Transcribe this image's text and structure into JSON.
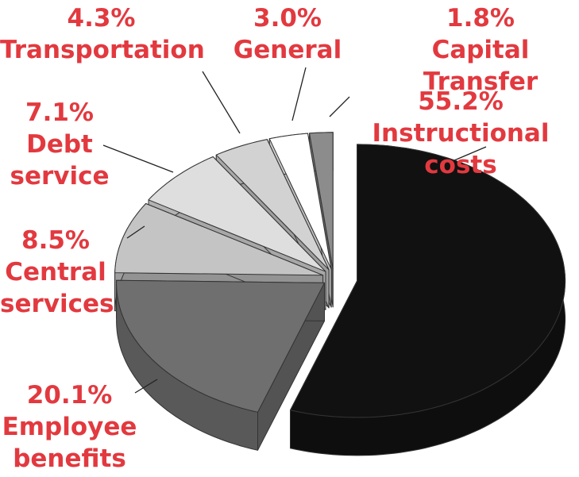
{
  "chart_data": {
    "type": "pie",
    "categories": [
      "Instructional costs",
      "Employee benefits",
      "Central services",
      "Debt service",
      "Transportation",
      "General",
      "Capital Transfer"
    ],
    "values": [
      55.2,
      20.1,
      8.5,
      7.1,
      4.3,
      3.0,
      1.8
    ],
    "value_labels": [
      "55.2%",
      "20.1%",
      "8.5%",
      "7.1%",
      "4.3%",
      "3.0%",
      "1.8%"
    ],
    "colors": [
      "#111111",
      "#6f6f6f",
      "#c4c4c4",
      "#dedede",
      "#d2d2d2",
      "#ffffff",
      "#8c8c8c"
    ]
  }
}
